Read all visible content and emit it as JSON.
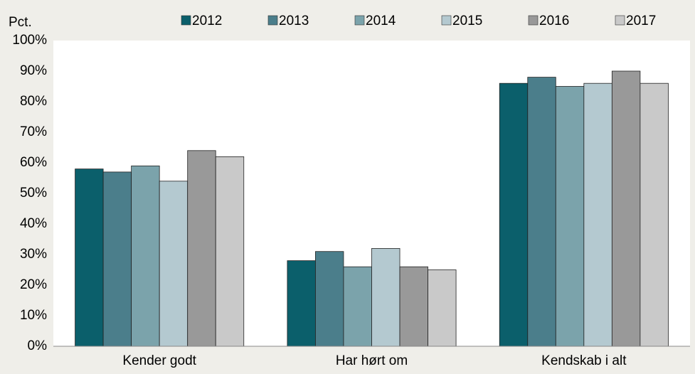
{
  "chart_data": {
    "type": "bar",
    "y_label": "Pct.",
    "categories": [
      "Kender godt",
      "Har hørt om",
      "Kendskab i alt"
    ],
    "series": [
      {
        "name": "2012",
        "color": "#0b5f6b",
        "values": [
          58,
          28,
          86
        ]
      },
      {
        "name": "2013",
        "color": "#4b7e8b",
        "values": [
          57,
          31,
          88
        ]
      },
      {
        "name": "2014",
        "color": "#7ba3ab",
        "values": [
          59,
          26,
          85
        ]
      },
      {
        "name": "2015",
        "color": "#b4c9d0",
        "values": [
          54,
          32,
          86
        ]
      },
      {
        "name": "2016",
        "color": "#999999",
        "values": [
          64,
          26,
          90
        ]
      },
      {
        "name": "2017",
        "color": "#c9c9c9",
        "values": [
          62,
          25,
          86
        ]
      }
    ],
    "ylim": [
      0,
      100
    ],
    "yticks": [
      {
        "value": 0,
        "label": "0%"
      },
      {
        "value": 10,
        "label": "10%"
      },
      {
        "value": 20,
        "label": "20%"
      },
      {
        "value": 30,
        "label": "30%"
      },
      {
        "value": 40,
        "label": "40%"
      },
      {
        "value": 50,
        "label": "50%"
      },
      {
        "value": 60,
        "label": "60%"
      },
      {
        "value": 70,
        "label": "70%"
      },
      {
        "value": 80,
        "label": "80%"
      },
      {
        "value": 90,
        "label": "90%"
      },
      {
        "value": 100,
        "label": "100%"
      }
    ],
    "grid": false,
    "legend": "top"
  }
}
